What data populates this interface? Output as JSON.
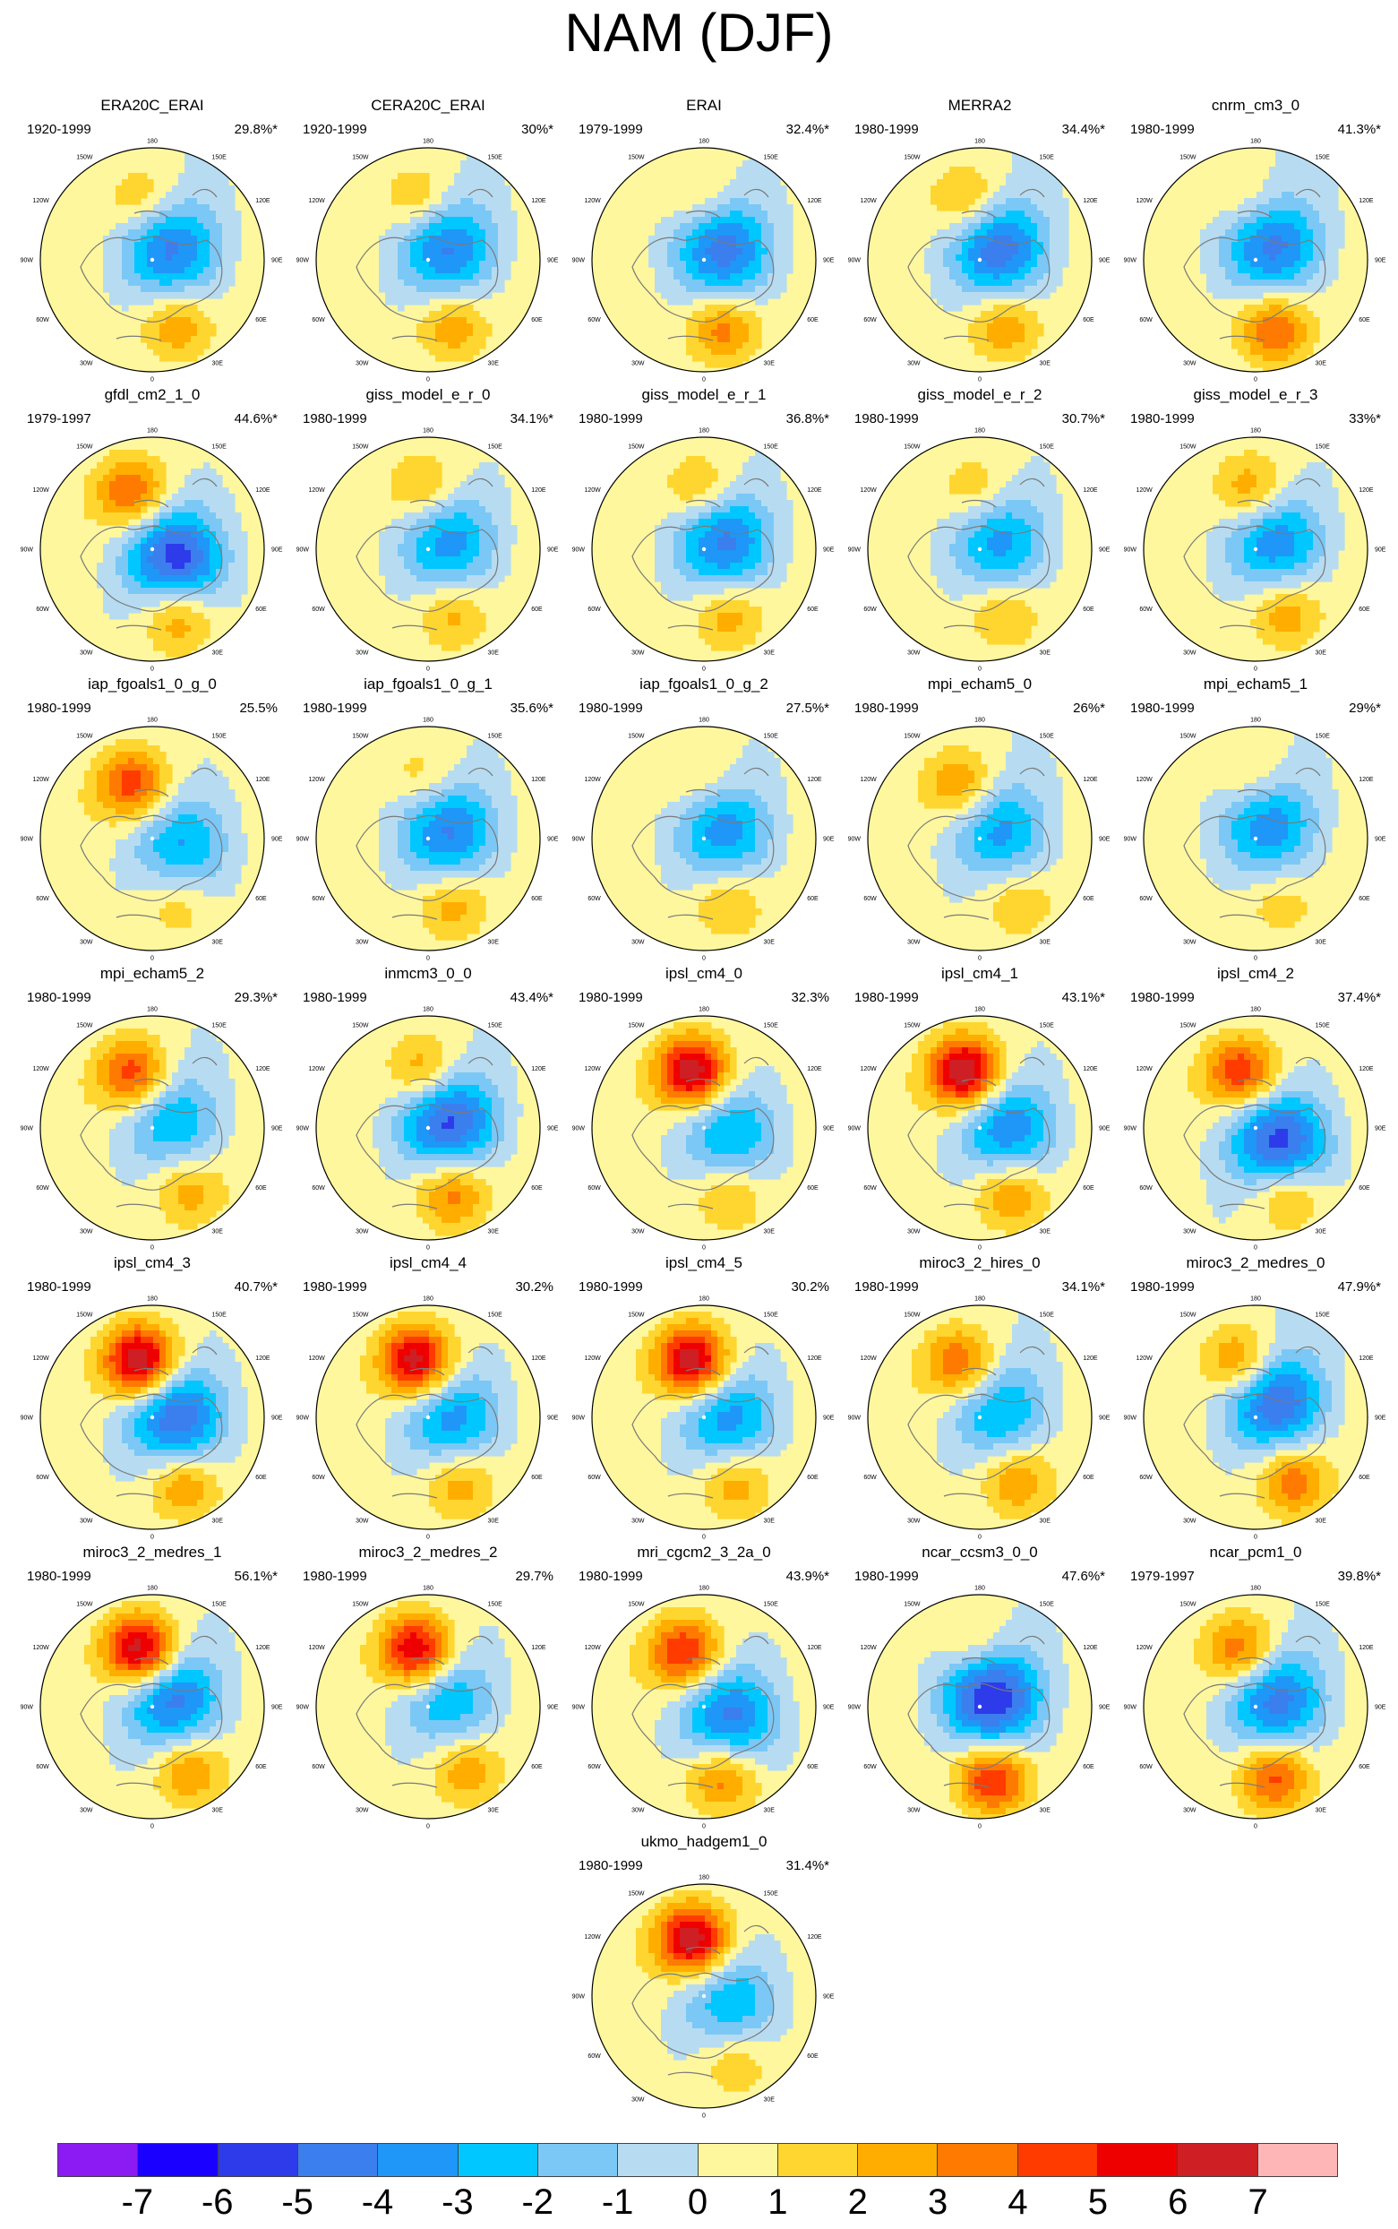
{
  "figure": {
    "title": "NAM (DJF)"
  },
  "panels": [
    {
      "name": "ERA20C_ERAI",
      "period": "1920-1999",
      "variance": "29.8%*",
      "pattern": {
        "pac": 2.2,
        "pacLat": 52,
        "pacLon": 170,
        "pole": -4.5,
        "poleLat": 76,
        "poleLon": 240,
        "atl": 2.8,
        "atlLat": 46,
        "atlLon": 340
      }
    },
    {
      "name": "CERA20C_ERAI",
      "period": "1920-1999",
      "variance": "30%*",
      "pattern": {
        "pac": 2.3,
        "pacLat": 52,
        "pacLon": 170,
        "pole": -4.4,
        "poleLat": 76,
        "poleLon": 240,
        "atl": 2.8,
        "atlLat": 46,
        "atlLon": 340
      }
    },
    {
      "name": "ERAI",
      "period": "1979-1999",
      "variance": "32.4%*",
      "pattern": {
        "pac": 1.6,
        "pacLat": 50,
        "pacLon": 175,
        "pole": -4.8,
        "poleLat": 76,
        "poleLon": 245,
        "atl": 3.5,
        "atlLat": 45,
        "atlLon": 345
      }
    },
    {
      "name": "MERRA2",
      "period": "1980-1999",
      "variance": "34.4%*",
      "pattern": {
        "pac": 2.8,
        "pacLat": 52,
        "pacLon": 168,
        "pole": -5.0,
        "poleLat": 76,
        "poleLon": 240,
        "atl": 3.0,
        "atlLat": 46,
        "atlLon": 340
      }
    },
    {
      "name": "cnrm_cm3_0",
      "period": "1980-1999",
      "variance": "41.3%*",
      "pattern": {
        "pac": 1.5,
        "pacLat": 52,
        "pacLon": 170,
        "pole": -4.6,
        "poleLat": 76,
        "poleLon": 230,
        "atl": 4.2,
        "atlLat": 45,
        "atlLon": 345
      }
    },
    {
      "name": "gfdl_cm2_1_0",
      "period": "1979-1997",
      "variance": "44.6%*",
      "pattern": {
        "pac": 4.2,
        "pacLat": 52,
        "pacLon": 160,
        "pole": -5.8,
        "poleLat": 74,
        "poleLon": 290,
        "atl": 3.2,
        "atlLat": 44,
        "atlLon": 340
      }
    },
    {
      "name": "giss_model_e_r_0",
      "period": "1980-1999",
      "variance": "34.1%*",
      "pattern": {
        "pac": 2.6,
        "pacLat": 52,
        "pacLon": 175,
        "pole": -3.8,
        "poleLat": 76,
        "poleLon": 250,
        "atl": 2.4,
        "atlLat": 46,
        "atlLon": 340
      }
    },
    {
      "name": "giss_model_e_r_1",
      "period": "1980-1999",
      "variance": "36.8%*",
      "pattern": {
        "pac": 2.4,
        "pacLat": 52,
        "pacLon": 175,
        "pole": -4.6,
        "poleLat": 76,
        "poleLon": 250,
        "atl": 2.6,
        "atlLat": 46,
        "atlLon": 340
      }
    },
    {
      "name": "giss_model_e_r_2",
      "period": "1980-1999",
      "variance": "30.7%*",
      "pattern": {
        "pac": 2.0,
        "pacLat": 52,
        "pacLon": 175,
        "pole": -3.6,
        "poleLat": 76,
        "poleLon": 250,
        "atl": 2.2,
        "atlLat": 46,
        "atlLon": 340
      }
    },
    {
      "name": "giss_model_e_r_3",
      "period": "1980-1999",
      "variance": "33%*",
      "pattern": {
        "pac": 3.0,
        "pacLat": 52,
        "pacLon": 175,
        "pole": -4.0,
        "poleLat": 76,
        "poleLon": 250,
        "atl": 2.8,
        "atlLat": 46,
        "atlLon": 335
      }
    },
    {
      "name": "iap_fgoals1_0_g_0",
      "period": "1980-1999",
      "variance": "25.5%",
      "pattern": {
        "pac": 4.6,
        "pacLat": 54,
        "pacLon": 160,
        "pole": -3.4,
        "poleLat": 70,
        "poleLon": 280,
        "atl": 1.8,
        "atlLat": 46,
        "atlLon": 340
      }
    },
    {
      "name": "iap_fgoals1_0_g_1",
      "period": "1980-1999",
      "variance": "35.6%*",
      "pattern": {
        "pac": 1.8,
        "pacLat": 52,
        "pacLon": 175,
        "pole": -4.4,
        "poleLat": 76,
        "poleLon": 250,
        "atl": 2.6,
        "atlLat": 46,
        "atlLon": 340
      }
    },
    {
      "name": "iap_fgoals1_0_g_2",
      "period": "1980-1999",
      "variance": "27.5%*",
      "pattern": {
        "pac": 1.6,
        "pacLat": 52,
        "pacLon": 175,
        "pole": -3.8,
        "poleLat": 76,
        "poleLon": 250,
        "atl": 2.2,
        "atlLat": 46,
        "atlLon": 340
      }
    },
    {
      "name": "mpi_echam5_0",
      "period": "1980-1999",
      "variance": "26%*",
      "pattern": {
        "pac": 3.2,
        "pacLat": 54,
        "pacLon": 160,
        "pole": -3.6,
        "poleLat": 76,
        "poleLon": 250,
        "atl": 2.0,
        "atlLat": 44,
        "atlLon": 330
      }
    },
    {
      "name": "mpi_echam5_1",
      "period": "1980-1999",
      "variance": "29%*",
      "pattern": {
        "pac": 1.8,
        "pacLat": 52,
        "pacLon": 175,
        "pole": -4.0,
        "poleLat": 78,
        "poleLon": 220,
        "atl": 1.6,
        "atlLat": 46,
        "atlLon": 340
      }
    },
    {
      "name": "mpi_echam5_2",
      "period": "1980-1999",
      "variance": "29.3%*",
      "pattern": {
        "pac": 4.8,
        "pacLat": 54,
        "pacLon": 160,
        "pole": -3.2,
        "poleLat": 76,
        "poleLon": 250,
        "atl": 2.6,
        "atlLat": 44,
        "atlLon": 330
      }
    },
    {
      "name": "inmcm3_0_0",
      "period": "1980-1999",
      "variance": "43.4%*",
      "pattern": {
        "pac": 3.2,
        "pacLat": 54,
        "pacLon": 175,
        "pole": -5.6,
        "poleLat": 76,
        "poleLon": 250,
        "atl": 3.6,
        "atlLat": 46,
        "atlLon": 340
      }
    },
    {
      "name": "ipsl_cm4_0",
      "period": "1980-1999",
      "variance": "32.3%",
      "pattern": {
        "pac": 7.0,
        "pacLat": 54,
        "pacLon": 168,
        "pole": -3.4,
        "poleLat": 72,
        "poleLon": 280,
        "atl": 2.4,
        "atlLat": 44,
        "atlLon": 340
      }
    },
    {
      "name": "ipsl_cm4_1",
      "period": "1980-1999",
      "variance": "43.1%*",
      "pattern": {
        "pac": 7.4,
        "pacLat": 54,
        "pacLon": 165,
        "pole": -4.2,
        "poleLat": 72,
        "poleLon": 270,
        "atl": 3.2,
        "atlLat": 44,
        "atlLon": 335
      }
    },
    {
      "name": "ipsl_cm4_2",
      "period": "1980-1999",
      "variance": "37.4%*",
      "pattern": {
        "pac": 5.0,
        "pacLat": 54,
        "pacLon": 165,
        "pole": -5.8,
        "poleLat": 72,
        "poleLon": 300,
        "atl": 3.0,
        "atlLat": 44,
        "atlLon": 335
      }
    },
    {
      "name": "ipsl_cm4_3",
      "period": "1980-1999",
      "variance": "40.7%*",
      "pattern": {
        "pac": 7.4,
        "pacLat": 54,
        "pacLon": 168,
        "pole": -5.2,
        "poleLat": 74,
        "poleLon": 270,
        "atl": 3.2,
        "atlLat": 44,
        "atlLon": 335
      }
    },
    {
      "name": "ipsl_cm4_4",
      "period": "1980-1999",
      "variance": "30.2%",
      "pattern": {
        "pac": 6.8,
        "pacLat": 54,
        "pacLon": 168,
        "pole": -3.8,
        "poleLat": 74,
        "poleLon": 270,
        "atl": 2.8,
        "atlLat": 44,
        "atlLon": 335
      }
    },
    {
      "name": "ipsl_cm4_5",
      "period": "1980-1999",
      "variance": "30.2%",
      "pattern": {
        "pac": 7.0,
        "pacLat": 54,
        "pacLon": 168,
        "pole": -3.8,
        "poleLat": 74,
        "poleLon": 270,
        "atl": 2.8,
        "atlLat": 44,
        "atlLon": 335
      }
    },
    {
      "name": "miroc3_2_hires_0",
      "period": "1980-1999",
      "variance": "34.1%*",
      "pattern": {
        "pac": 4.2,
        "pacLat": 54,
        "pacLon": 160,
        "pole": -3.4,
        "poleLat": 76,
        "poleLon": 250,
        "atl": 3.0,
        "atlLat": 44,
        "atlLon": 330
      }
    },
    {
      "name": "miroc3_2_medres_0",
      "period": "1980-1999",
      "variance": "47.9%*",
      "pattern": {
        "pac": 3.8,
        "pacLat": 54,
        "pacLon": 165,
        "pole": -5.4,
        "poleLat": 74,
        "poleLon": 230,
        "atl": 3.8,
        "atlLat": 44,
        "atlLon": 330
      }
    },
    {
      "name": "miroc3_2_medres_1",
      "period": "1980-1999",
      "variance": "56.1%*",
      "pattern": {
        "pac": 7.2,
        "pacLat": 54,
        "pacLon": 168,
        "pole": -4.8,
        "poleLat": 76,
        "poleLon": 250,
        "atl": 3.2,
        "atlLat": 44,
        "atlLon": 330
      }
    },
    {
      "name": "miroc3_2_medres_2",
      "period": "1980-1999",
      "variance": "29.7%",
      "pattern": {
        "pac": 6.4,
        "pacLat": 54,
        "pacLon": 168,
        "pole": -3.2,
        "poleLat": 76,
        "poleLon": 250,
        "atl": 2.8,
        "atlLat": 44,
        "atlLon": 330
      }
    },
    {
      "name": "mri_cgcm2_3_2a_0",
      "period": "1980-1999",
      "variance": "43.9%*",
      "pattern": {
        "pac": 5.2,
        "pacLat": 54,
        "pacLon": 160,
        "pole": -4.6,
        "poleLat": 72,
        "poleLon": 290,
        "atl": 3.8,
        "atlLat": 44,
        "atlLon": 345
      }
    },
    {
      "name": "ncar_ccsm3_0_0",
      "period": "1980-1999",
      "variance": "47.6%*",
      "pattern": {
        "pac": 2.0,
        "pacLat": 52,
        "pacLon": 175,
        "pole": -6.4,
        "poleLat": 80,
        "poleLon": 230,
        "atl": 5.2,
        "atlLat": 44,
        "atlLon": 350
      }
    },
    {
      "name": "ncar_pcm1_0",
      "period": "1979-1997",
      "variance": "39.8%*",
      "pattern": {
        "pac": 4.2,
        "pacLat": 54,
        "pacLon": 165,
        "pole": -4.8,
        "poleLat": 76,
        "poleLon": 250,
        "atl": 4.4,
        "atlLat": 44,
        "atlLon": 345
      }
    },
    {
      "name": "ukmo_hadgem1_0",
      "period": "1980-1999",
      "variance": "31.4%*",
      "pattern": {
        "pac": 7.0,
        "pacLat": 54,
        "pacLon": 168,
        "pole": -3.2,
        "poleLat": 72,
        "poleLon": 280,
        "atl": 2.0,
        "atlLat": 44,
        "atlLon": 335
      }
    }
  ],
  "map_labels": {
    "top": "180",
    "bottom": "0",
    "left": "90W",
    "right": "90E",
    "upper_left": "120W",
    "upper_right": "120E",
    "lower_left": "60W",
    "lower_right": "60E",
    "top_left": "150W",
    "top_right": "150E",
    "bottom_left": "30W",
    "bottom_right": "30E"
  },
  "colorbar": {
    "colors": [
      "#8c1af2",
      "#1a00ff",
      "#2e3bea",
      "#3b7eee",
      "#1e97f8",
      "#00c7ff",
      "#7bc8f6",
      "#b7dcf1",
      "#fff79e",
      "#ffd62f",
      "#ffae00",
      "#ff7a00",
      "#ff3b00",
      "#ef0000",
      "#cd1f24",
      "#ffb6b6"
    ],
    "labels": [
      "-7",
      "-6",
      "-5",
      "-4",
      "-3",
      "-2",
      "-1",
      "0",
      "1",
      "2",
      "3",
      "4",
      "5",
      "6",
      "7"
    ],
    "levels": [
      -7,
      -6,
      -5,
      -4,
      -3,
      -2,
      -1,
      0,
      1,
      2,
      3,
      4,
      5,
      6,
      7
    ]
  }
}
